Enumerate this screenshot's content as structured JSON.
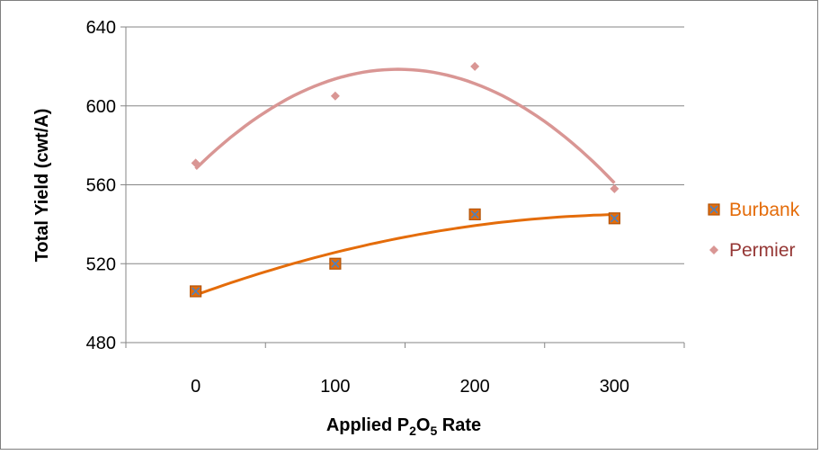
{
  "chart_data": {
    "type": "scatter",
    "xlabel": {
      "prefix": "Applied P",
      "sub1": "2",
      "mid": "O",
      "sub2": "5",
      "suffix": " Rate"
    },
    "ylabel": "Total Yield (cwt/A)",
    "xlim": [
      -50,
      350
    ],
    "ylim": [
      480,
      640
    ],
    "xticks": [
      0,
      100,
      200,
      300
    ],
    "yticks": [
      480,
      520,
      560,
      600,
      640
    ],
    "x_tick_labels": [
      "0",
      "100",
      "200",
      "300"
    ],
    "y_tick_labels": [
      "480",
      "520",
      "560",
      "600",
      "640"
    ],
    "grid": "horizontal",
    "legend_position": "right",
    "series": [
      {
        "name": "Burbank",
        "x": [
          0,
          100,
          200,
          300
        ],
        "y": [
          506,
          520,
          545,
          543
        ],
        "color": "#e46c0a",
        "marker": "square",
        "trendline": "polynomial-2"
      },
      {
        "name": "Permier",
        "x": [
          0,
          100,
          200,
          300
        ],
        "y": [
          571,
          605,
          620,
          558
        ],
        "color": "#d99694",
        "marker": "diamond",
        "trendline": "polynomial-2"
      }
    ]
  }
}
